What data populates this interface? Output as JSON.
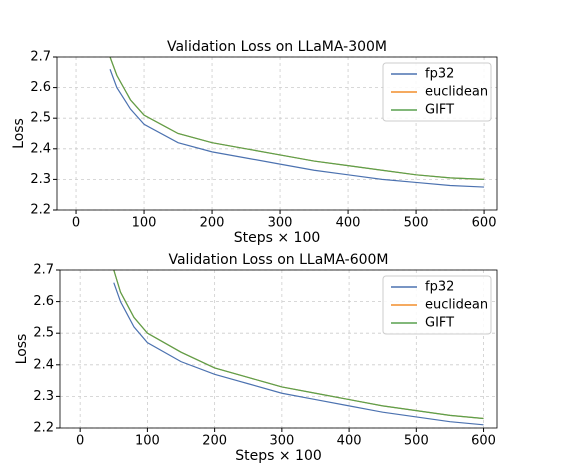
{
  "chart_data": [
    {
      "type": "line",
      "title": "Validation Loss on LLaMA-300M",
      "xlabel": "Steps × 100",
      "ylabel": "Loss",
      "x": [
        50,
        60,
        80,
        100,
        150,
        200,
        250,
        300,
        350,
        400,
        450,
        500,
        550,
        600
      ],
      "series": [
        {
          "name": "fp32",
          "color": "#4c72b0",
          "values": [
            2.66,
            2.6,
            2.53,
            2.48,
            2.42,
            2.39,
            2.37,
            2.35,
            2.33,
            2.315,
            2.3,
            2.29,
            2.28,
            2.275
          ]
        },
        {
          "name": "euclidean",
          "color": "#f28e2b",
          "values": [
            2.7,
            2.64,
            2.56,
            2.51,
            2.45,
            2.42,
            2.4,
            2.38,
            2.36,
            2.345,
            2.33,
            2.315,
            2.305,
            2.3
          ]
        },
        {
          "name": "GIFT",
          "color": "#59a14f",
          "values": [
            2.7,
            2.64,
            2.56,
            2.51,
            2.45,
            2.42,
            2.4,
            2.38,
            2.36,
            2.345,
            2.33,
            2.315,
            2.305,
            2.3
          ]
        }
      ],
      "xlim": [
        -28,
        619
      ],
      "ylim": [
        2.2,
        2.7
      ],
      "xticks": [
        0,
        100,
        200,
        300,
        400,
        500,
        600
      ],
      "yticks": [
        2.2,
        2.3,
        2.4,
        2.5,
        2.6,
        2.7
      ],
      "grid": true,
      "legend": "upper right"
    },
    {
      "type": "line",
      "title": "Validation Loss on LLaMA-600M",
      "xlabel": "Steps × 100",
      "ylabel": "Loss",
      "x": [
        50,
        60,
        80,
        100,
        150,
        200,
        250,
        300,
        350,
        400,
        450,
        500,
        550,
        600
      ],
      "series": [
        {
          "name": "fp32",
          "color": "#4c72b0",
          "values": [
            2.66,
            2.6,
            2.52,
            2.47,
            2.41,
            2.37,
            2.34,
            2.31,
            2.29,
            2.27,
            2.25,
            2.235,
            2.22,
            2.21
          ]
        },
        {
          "name": "euclidean",
          "color": "#f28e2b",
          "values": [
            2.7,
            2.63,
            2.55,
            2.5,
            2.44,
            2.39,
            2.36,
            2.33,
            2.31,
            2.29,
            2.27,
            2.255,
            2.24,
            2.23
          ]
        },
        {
          "name": "GIFT",
          "color": "#59a14f",
          "values": [
            2.7,
            2.63,
            2.55,
            2.5,
            2.44,
            2.39,
            2.36,
            2.33,
            2.31,
            2.29,
            2.27,
            2.255,
            2.24,
            2.23
          ]
        }
      ],
      "xlim": [
        -30,
        620
      ],
      "ylim": [
        2.2,
        2.7
      ],
      "xticks": [
        0,
        100,
        200,
        300,
        400,
        500,
        600
      ],
      "yticks": [
        2.2,
        2.3,
        2.4,
        2.5,
        2.6,
        2.7
      ],
      "grid": true,
      "legend": "upper right"
    }
  ]
}
